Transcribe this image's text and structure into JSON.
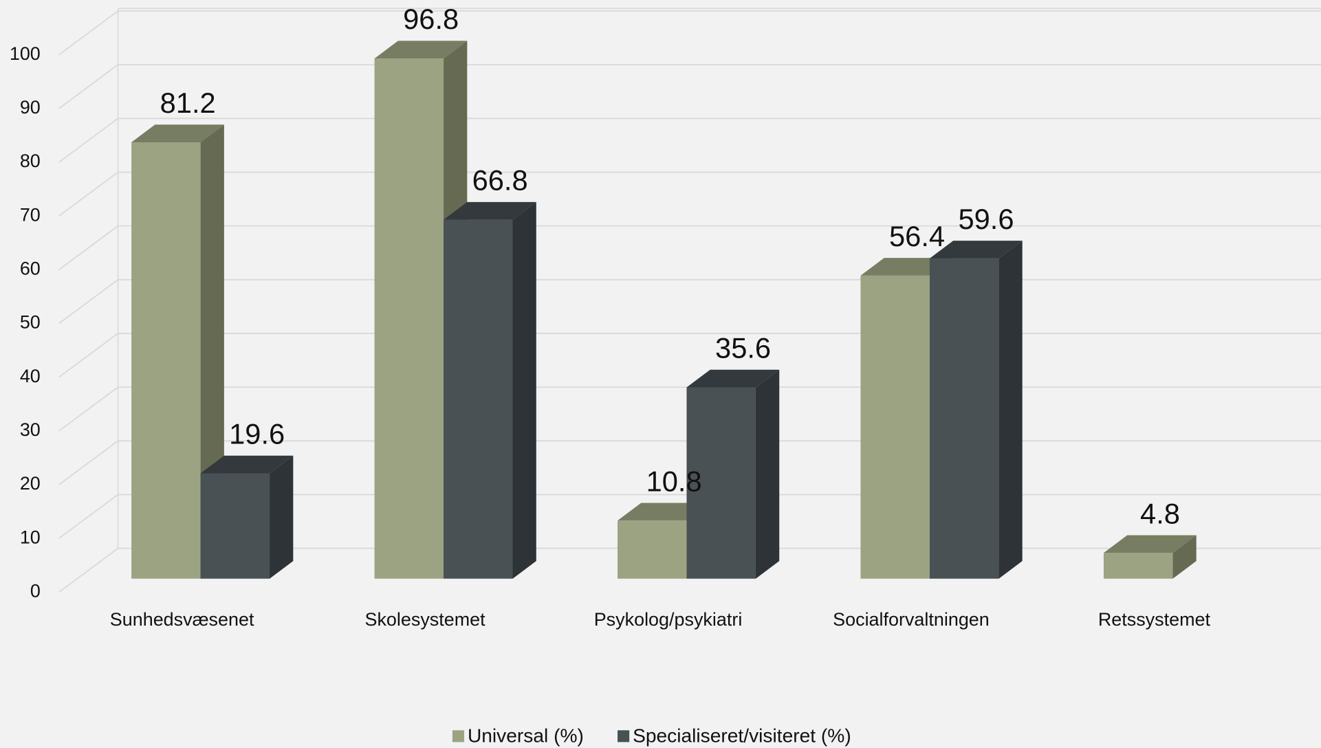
{
  "chart_data": {
    "type": "bar3d",
    "categories": [
      "Sunhedsvæsenet",
      "Skolesystemet",
      "Psykolog/psykiatri",
      "Socialforvaltningen",
      "Retssystemet"
    ],
    "series": [
      {
        "name": "Universal (%)",
        "color": "#9ba382",
        "values": [
          81.2,
          96.8,
          10.8,
          56.4,
          4.8
        ]
      },
      {
        "name": "Specialiseret/visiteret (%)",
        "color": "#495155",
        "values": [
          19.6,
          66.8,
          35.6,
          59.6,
          null
        ]
      }
    ],
    "ylim": [
      0,
      100
    ],
    "yticks": [
      0,
      10,
      20,
      30,
      40,
      50,
      60,
      70,
      80,
      90,
      100
    ],
    "grid": true,
    "legend": "bottom"
  }
}
